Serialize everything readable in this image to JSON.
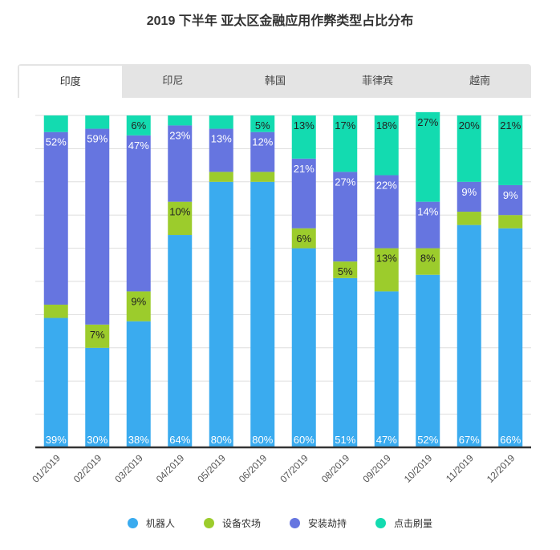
{
  "title": "2019 下半年 亚太区金融应用作弊类型占比分布",
  "tabs": [
    {
      "label": "印度",
      "active": true
    },
    {
      "label": "印尼",
      "active": false
    },
    {
      "label": "韩国",
      "active": false
    },
    {
      "label": "菲律宾",
      "active": false
    },
    {
      "label": "越南",
      "active": false
    }
  ],
  "colors": {
    "机器人": "#3aabef",
    "设备农场": "#9ccc2c",
    "安装劫持": "#6675e0",
    "点击刷量": "#13dbb0"
  },
  "chart_data": {
    "type": "bar",
    "stacked": true,
    "title": "2019 下半年 亚太区金融应用作弊类型占比分布",
    "categories": [
      "01/2019",
      "02/2019",
      "03/2019",
      "04/2019",
      "05/2019",
      "06/2019",
      "07/2019",
      "08/2019",
      "09/2019",
      "10/2019",
      "11/2019",
      "12/2019"
    ],
    "ylim": [
      0,
      100
    ],
    "grid": true,
    "legend_position": "bottom",
    "series": [
      {
        "name": "机器人",
        "values": [
          39,
          30,
          38,
          64,
          80,
          80,
          60,
          51,
          47,
          52,
          67,
          66
        ],
        "labels": [
          "39%",
          "30%",
          "38%",
          "64%",
          "80%",
          "80%",
          "60%",
          "51%",
          "47%",
          "52%",
          "67%",
          "66%"
        ]
      },
      {
        "name": "设备农场",
        "values": [
          4,
          7,
          9,
          10,
          3,
          3,
          6,
          5,
          13,
          8,
          4,
          4
        ],
        "labels": [
          "",
          "7%",
          "9%",
          "10%",
          "",
          "",
          "6%",
          "5%",
          "13%",
          "8%",
          "",
          ""
        ]
      },
      {
        "name": "安装劫持",
        "values": [
          52,
          59,
          47,
          23,
          13,
          12,
          21,
          27,
          22,
          14,
          9,
          9
        ],
        "labels": [
          "52%",
          "59%",
          "47%",
          "23%",
          "13%",
          "12%",
          "21%",
          "27%",
          "22%",
          "14%",
          "9%",
          "9%"
        ]
      },
      {
        "name": "点击刷量",
        "values": [
          5,
          4,
          6,
          3,
          4,
          5,
          13,
          17,
          18,
          27,
          20,
          21
        ],
        "labels": [
          "",
          "",
          "6%",
          "",
          "",
          "5%",
          "13%",
          "17%",
          "18%",
          "27%",
          "20%",
          "21%"
        ]
      }
    ]
  }
}
